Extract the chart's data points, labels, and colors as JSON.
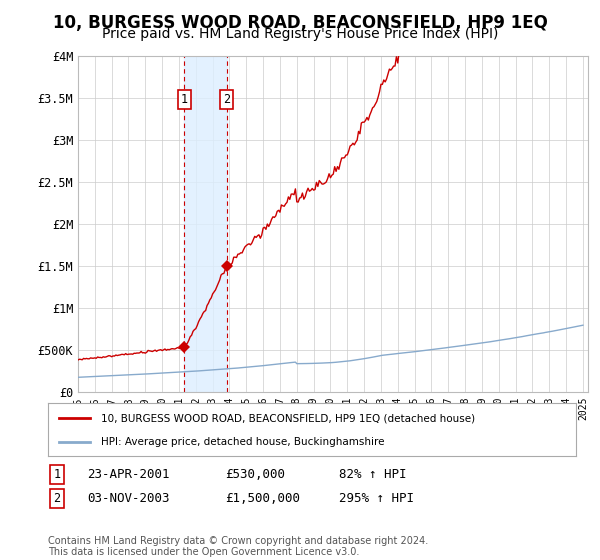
{
  "title": "10, BURGESS WOOD ROAD, BEACONSFIELD, HP9 1EQ",
  "subtitle": "Price paid vs. HM Land Registry's House Price Index (HPI)",
  "title_fontsize": 12,
  "subtitle_fontsize": 10,
  "sale1_year": 2001.31,
  "sale1_price": 530000,
  "sale2_year": 2003.84,
  "sale2_price": 1500000,
  "red_line_color": "#cc0000",
  "blue_line_color": "#88aacc",
  "background_color": "#ffffff",
  "grid_color": "#cccccc",
  "highlight_color": "#ddeeff",
  "legend_entry1": "10, BURGESS WOOD ROAD, BEACONSFIELD, HP9 1EQ (detached house)",
  "legend_entry2": "HPI: Average price, detached house, Buckinghamshire",
  "sale1_date": "23-APR-2001",
  "sale2_date": "03-NOV-2003",
  "footnote": "Contains HM Land Registry data © Crown copyright and database right 2024.\nThis data is licensed under the Open Government Licence v3.0.",
  "ylim_max": 4000000,
  "yticks": [
    0,
    500000,
    1000000,
    1500000,
    2000000,
    2500000,
    3000000,
    3500000,
    4000000
  ],
  "ytick_labels": [
    "£0",
    "£500K",
    "£1M",
    "£1.5M",
    "£2M",
    "£2.5M",
    "£3M",
    "£3.5M",
    "£4M"
  ]
}
